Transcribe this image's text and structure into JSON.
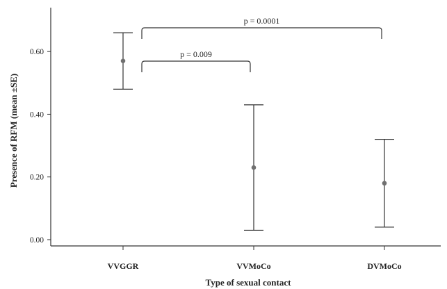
{
  "chart_data": {
    "type": "errorbar",
    "title": "",
    "xlabel": "Type of sexual contact",
    "ylabel": "Presence of RFM (mean ±SE)",
    "categories": [
      "VVGGR",
      "VVMoCo",
      "DVMoCo"
    ],
    "series": [
      {
        "means": [
          0.57,
          0.23,
          0.18
        ],
        "lower": [
          0.48,
          0.03,
          0.04
        ],
        "upper": [
          0.66,
          0.43,
          0.32
        ]
      }
    ],
    "ylim": [
      -0.02,
      0.74
    ],
    "yticks": [
      0.0,
      0.2,
      0.4,
      0.6
    ],
    "ytick_labels": [
      "0.00",
      "0.20",
      "0.40",
      "0.60"
    ],
    "grid": false,
    "legend": "none",
    "annotations": [
      {
        "text": "p = 0.009",
        "from": "VVGGR",
        "to": "VVMoCo"
      },
      {
        "text": "p = 0.0001",
        "from": "VVGGR",
        "to": "DVMoCo"
      }
    ],
    "colors": {
      "axis": "#333333",
      "errorbar": "#333333",
      "marker": "#707070"
    }
  }
}
